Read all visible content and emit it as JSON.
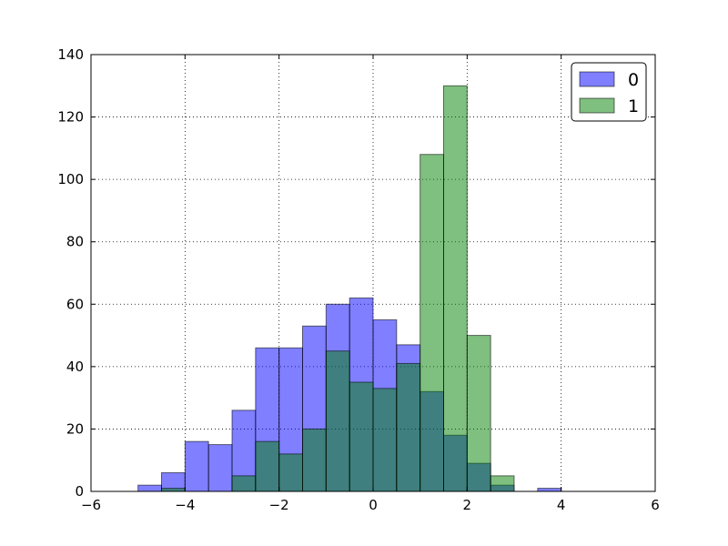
{
  "chart_data": {
    "type": "histogram",
    "title": "",
    "xlabel": "",
    "ylabel": "",
    "xlim": [
      -6,
      6
    ],
    "ylim": [
      0,
      140
    ],
    "xticks": [
      -6,
      -4,
      -2,
      0,
      2,
      4,
      6
    ],
    "yticks": [
      0,
      20,
      40,
      60,
      80,
      100,
      120,
      140
    ],
    "grid": true,
    "legend_position": "top-right",
    "series": [
      {
        "name": "0",
        "color": "#0000ff",
        "bins": [
          {
            "x0": -5.0,
            "x1": -4.5,
            "count": 2
          },
          {
            "x0": -4.5,
            "x1": -4.0,
            "count": 6
          },
          {
            "x0": -4.0,
            "x1": -3.5,
            "count": 16
          },
          {
            "x0": -3.5,
            "x1": -3.0,
            "count": 15
          },
          {
            "x0": -3.0,
            "x1": -2.5,
            "count": 26
          },
          {
            "x0": -2.5,
            "x1": -2.0,
            "count": 46
          },
          {
            "x0": -2.0,
            "x1": -1.5,
            "count": 46
          },
          {
            "x0": -1.5,
            "x1": -1.0,
            "count": 53
          },
          {
            "x0": -1.0,
            "x1": -0.5,
            "count": 60
          },
          {
            "x0": -0.5,
            "x1": 0.0,
            "count": 62
          },
          {
            "x0": 0.0,
            "x1": 0.5,
            "count": 55
          },
          {
            "x0": 0.5,
            "x1": 1.0,
            "count": 47
          },
          {
            "x0": 1.0,
            "x1": 1.5,
            "count": 32
          },
          {
            "x0": 1.5,
            "x1": 2.0,
            "count": 18
          },
          {
            "x0": 2.0,
            "x1": 2.5,
            "count": 9
          },
          {
            "x0": 2.5,
            "x1": 3.0,
            "count": 2
          },
          {
            "x0": 3.5,
            "x1": 4.0,
            "count": 1
          }
        ]
      },
      {
        "name": "1",
        "color": "#008000",
        "bins": [
          {
            "x0": -4.5,
            "x1": -4.0,
            "count": 1
          },
          {
            "x0": -3.0,
            "x1": -2.5,
            "count": 5
          },
          {
            "x0": -2.5,
            "x1": -2.0,
            "count": 16
          },
          {
            "x0": -2.0,
            "x1": -1.5,
            "count": 12
          },
          {
            "x0": -1.5,
            "x1": -1.0,
            "count": 20
          },
          {
            "x0": -1.0,
            "x1": -0.5,
            "count": 45
          },
          {
            "x0": -0.5,
            "x1": 0.0,
            "count": 35
          },
          {
            "x0": 0.0,
            "x1": 0.5,
            "count": 33
          },
          {
            "x0": 0.5,
            "x1": 1.0,
            "count": 41
          },
          {
            "x0": 1.0,
            "x1": 1.5,
            "count": 108
          },
          {
            "x0": 1.5,
            "x1": 2.0,
            "count": 130
          },
          {
            "x0": 2.0,
            "x1": 2.5,
            "count": 50
          },
          {
            "x0": 2.5,
            "x1": 3.0,
            "count": 5
          }
        ]
      }
    ]
  }
}
